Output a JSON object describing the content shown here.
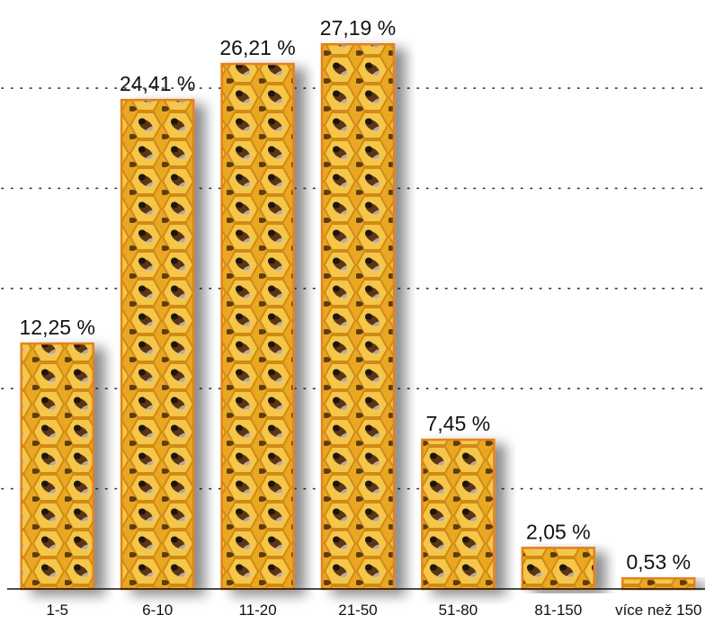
{
  "chart_data": {
    "type": "bar",
    "categories": [
      "1-5",
      "6-10",
      "11-20",
      "21-50",
      "51-80",
      "81-150",
      "více než 150"
    ],
    "values": [
      12.25,
      24.41,
      26.21,
      27.19,
      7.45,
      2.05,
      0.53
    ],
    "value_labels": [
      "12,25 %",
      "24,41 %",
      "26,21 %",
      "27,19 %",
      "7,45 %",
      "2,05 %",
      "0,53 %"
    ],
    "color": "#e5811c",
    "ylim": [
      0,
      29.4
    ],
    "yticks": [
      5,
      10,
      15,
      20,
      25
    ],
    "grid": true
  }
}
